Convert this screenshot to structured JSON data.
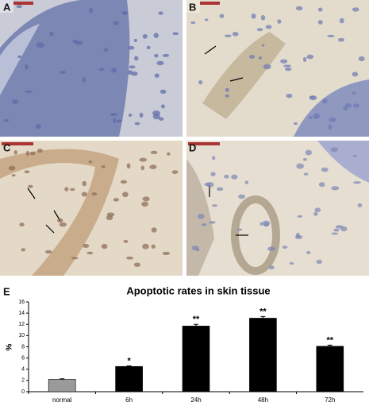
{
  "panels": [
    {
      "label": "A"
    },
    {
      "label": "B"
    },
    {
      "label": "C"
    },
    {
      "label": "D"
    }
  ],
  "chart_label": "E",
  "chart_data": {
    "type": "bar",
    "title": "Apoptotic rates in skin tissue",
    "y_label": "%",
    "categories": [
      "normal",
      "6h",
      "24h",
      "48h",
      "72h"
    ],
    "values": [
      2.2,
      4.5,
      11.7,
      13.1,
      8.1
    ],
    "errors": [
      0.1,
      0.1,
      0.3,
      0.3,
      0.2
    ],
    "annotations": [
      null,
      "*",
      "**",
      "**",
      "**"
    ],
    "colors": [
      "#9a9a9a",
      "#000000",
      "#000000",
      "#000000",
      "#000000"
    ],
    "ylim": [
      0,
      16
    ],
    "yticks": [
      0,
      2,
      4,
      6,
      8,
      10,
      12,
      14,
      16
    ]
  }
}
